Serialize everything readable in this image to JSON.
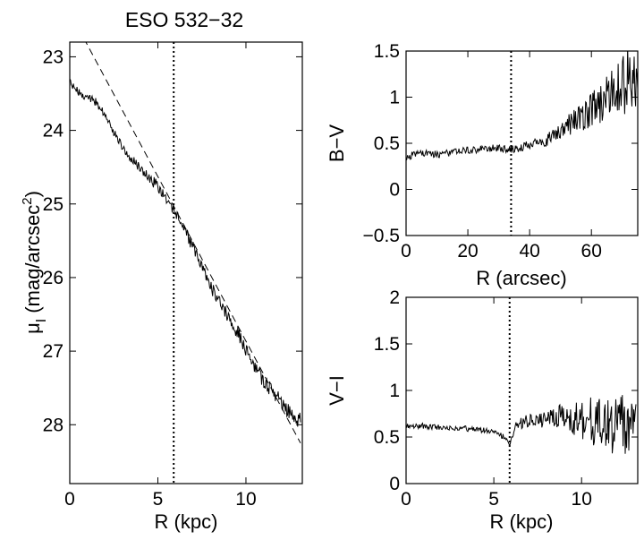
{
  "chart_data": [
    {
      "id": "surface-brightness",
      "type": "line",
      "title": "ESO 532−32",
      "xlabel": "R (kpc)",
      "ylabel": "μ",
      "ylabel_sub": "I",
      "ylabel_rest": "(mag/arcsec",
      "ylabel_sup": "2",
      "ylabel_end": ")",
      "xlim": [
        0,
        13.2
      ],
      "ylim": [
        28.8,
        22.8
      ],
      "y_inverted": true,
      "xticks": [
        0,
        5,
        10
      ],
      "yticks": [
        23,
        24,
        25,
        26,
        27,
        28
      ],
      "vertical_line_x": 5.9,
      "series": [
        {
          "name": "profile",
          "style": "solid",
          "noise_amplitude": 0.12,
          "x": [
            0,
            0.5,
            1.0,
            1.5,
            2.0,
            2.5,
            3.0,
            3.5,
            4.0,
            4.5,
            5.0,
            5.5,
            6.0,
            6.5,
            7.0,
            7.5,
            8.0,
            8.5,
            9.0,
            9.5,
            10.0,
            10.5,
            11.0,
            11.5,
            12.0,
            12.5,
            13.1
          ],
          "y": [
            23.35,
            23.48,
            23.55,
            23.62,
            23.78,
            24.02,
            24.23,
            24.38,
            24.52,
            24.64,
            24.76,
            24.92,
            25.12,
            25.35,
            25.6,
            25.87,
            26.12,
            26.32,
            26.52,
            26.74,
            26.98,
            27.22,
            27.4,
            27.55,
            27.7,
            27.85,
            27.95
          ]
        },
        {
          "name": "exponential-fit",
          "style": "dashed",
          "x": [
            0.8,
            13.1
          ],
          "y": [
            22.75,
            28.25
          ]
        }
      ]
    },
    {
      "id": "b-v-color",
      "type": "line",
      "xlabel": "R (arcsec)",
      "ylabel": "B−V",
      "xlim": [
        0,
        75
      ],
      "ylim": [
        -0.5,
        1.5
      ],
      "xticks": [
        0,
        20,
        40,
        60
      ],
      "yticks": [
        -0.5,
        0,
        0.5,
        1,
        1.5
      ],
      "ytick_labels": [
        "−0.5",
        "0",
        "0.5",
        "1",
        "1.5"
      ],
      "vertical_line_x": 34,
      "series": [
        {
          "name": "B-V",
          "style": "solid",
          "x": [
            0,
            5,
            10,
            15,
            20,
            25,
            30,
            34,
            38,
            42,
            46,
            50,
            54,
            58,
            62,
            66,
            70,
            75
          ],
          "y": [
            0.35,
            0.4,
            0.38,
            0.4,
            0.42,
            0.44,
            0.45,
            0.43,
            0.46,
            0.5,
            0.55,
            0.62,
            0.72,
            0.82,
            0.9,
            1.0,
            1.15,
            1.3
          ],
          "noise": [
            0.04,
            0.04,
            0.04,
            0.04,
            0.04,
            0.04,
            0.04,
            0.04,
            0.05,
            0.06,
            0.08,
            0.1,
            0.14,
            0.18,
            0.22,
            0.28,
            0.35,
            0.4
          ]
        }
      ]
    },
    {
      "id": "v-i-color",
      "type": "line",
      "xlabel": "R (kpc)",
      "ylabel": "V−I",
      "xlim": [
        0,
        13.2
      ],
      "ylim": [
        0,
        2
      ],
      "xticks": [
        0,
        5,
        10
      ],
      "yticks": [
        0,
        0.5,
        1,
        1.5,
        2
      ],
      "ytick_labels": [
        "0",
        "0.5",
        "1",
        "1.5",
        "2"
      ],
      "vertical_line_x": 5.9,
      "series": [
        {
          "name": "V-I",
          "style": "solid",
          "x": [
            0,
            1,
            2,
            3,
            4,
            5,
            5.6,
            5.9,
            6.2,
            7,
            8,
            9,
            10,
            11,
            12,
            13.1
          ],
          "y": [
            0.62,
            0.62,
            0.6,
            0.6,
            0.58,
            0.56,
            0.5,
            0.42,
            0.62,
            0.68,
            0.7,
            0.72,
            0.68,
            0.65,
            0.6,
            0.55
          ],
          "noise": [
            0.03,
            0.03,
            0.03,
            0.03,
            0.03,
            0.03,
            0.03,
            0.03,
            0.05,
            0.07,
            0.1,
            0.14,
            0.22,
            0.3,
            0.36,
            0.38
          ]
        }
      ]
    }
  ]
}
